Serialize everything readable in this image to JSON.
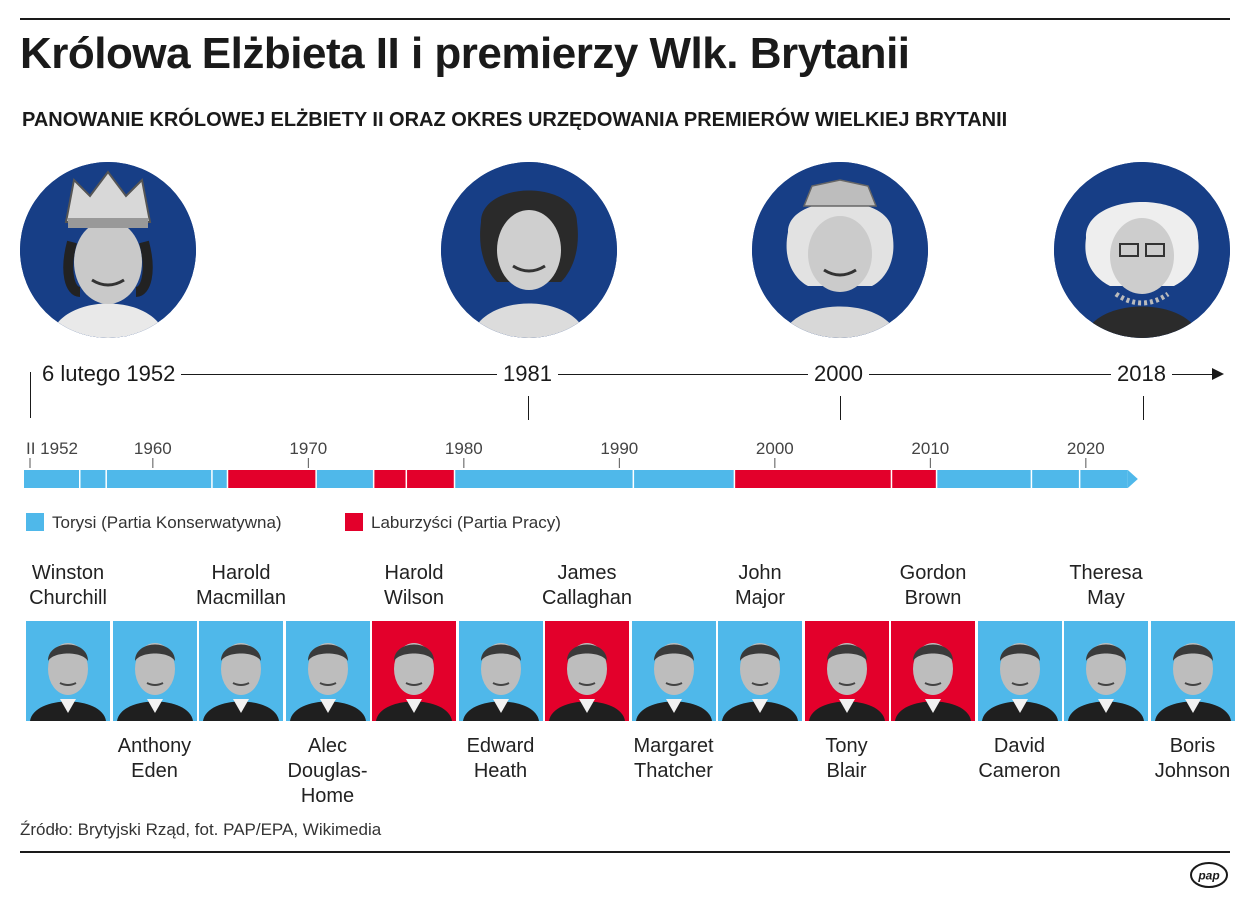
{
  "title": "Królowa Elżbieta II i premierzy Wlk. Brytanii",
  "subtitle": "PANOWANIE KRÓLOWEJ ELŻBIETY II ORAZ OKRES URZĘDOWANIA PREMIERÓW WIELKIEJ BRYTANII",
  "portraits": [
    {
      "year": "6 lutego 1952",
      "icon": "queen-portrait-1952"
    },
    {
      "year": "1981",
      "icon": "queen-portrait-1981"
    },
    {
      "year": "2000",
      "icon": "queen-portrait-2000"
    },
    {
      "year": "2018",
      "icon": "queen-portrait-2018"
    }
  ],
  "axis": {
    "start_label": "II 1952",
    "ticks": [
      "1960",
      "1970",
      "1980",
      "1990",
      "2000",
      "2010",
      "2020"
    ]
  },
  "colors": {
    "conservative": "#4fb8ea",
    "labour": "#e3002b",
    "portrait_bg": "#173e86"
  },
  "legend": [
    {
      "label": "Torysi (Partia Konserwatywna)",
      "party": "conservative"
    },
    {
      "label": "Laburzyści (Partia Pracy)",
      "party": "labour"
    }
  ],
  "terms": [
    {
      "party": "conservative",
      "from": 1952.1,
      "to": 1955.3
    },
    {
      "party": "conservative",
      "from": 1955.3,
      "to": 1957.0
    },
    {
      "party": "conservative",
      "from": 1957.0,
      "to": 1963.8
    },
    {
      "party": "conservative",
      "from": 1963.8,
      "to": 1964.8
    },
    {
      "party": "labour",
      "from": 1964.8,
      "to": 1970.5
    },
    {
      "party": "conservative",
      "from": 1970.5,
      "to": 1974.2
    },
    {
      "party": "labour",
      "from": 1974.2,
      "to": 1976.3
    },
    {
      "party": "labour",
      "from": 1976.3,
      "to": 1979.4
    },
    {
      "party": "conservative",
      "from": 1979.4,
      "to": 1990.9
    },
    {
      "party": "conservative",
      "from": 1990.9,
      "to": 1997.4
    },
    {
      "party": "labour",
      "from": 1997.4,
      "to": 2007.5
    },
    {
      "party": "labour",
      "from": 2007.5,
      "to": 2010.4
    },
    {
      "party": "conservative",
      "from": 2010.4,
      "to": 2016.5
    },
    {
      "party": "conservative",
      "from": 2016.5,
      "to": 2019.6
    },
    {
      "party": "conservative",
      "from": 2019.6,
      "to": 2022.7
    }
  ],
  "prime_ministers": [
    {
      "line1": "Winston",
      "line2": "Churchill",
      "party": "conservative",
      "label_pos": "top"
    },
    {
      "line1": "Anthony",
      "line2": "Eden",
      "party": "conservative",
      "label_pos": "bottom"
    },
    {
      "line1": "Harold",
      "line2": "Macmillan",
      "party": "conservative",
      "label_pos": "top"
    },
    {
      "line1": "Alec",
      "line2": "Douglas-Home",
      "party": "conservative",
      "label_pos": "bottom"
    },
    {
      "line1": "Harold",
      "line2": "Wilson",
      "party": "labour",
      "label_pos": "top"
    },
    {
      "line1": "Edward",
      "line2": "Heath",
      "party": "conservative",
      "label_pos": "bottom"
    },
    {
      "line1": "James",
      "line2": "Callaghan",
      "party": "labour",
      "label_pos": "top"
    },
    {
      "line1": "Margaret",
      "line2": "Thatcher",
      "party": "conservative",
      "label_pos": "bottom"
    },
    {
      "line1": "John",
      "line2": "Major",
      "party": "conservative",
      "label_pos": "top"
    },
    {
      "line1": "Tony",
      "line2": "Blair",
      "party": "labour",
      "label_pos": "bottom"
    },
    {
      "line1": "Gordon",
      "line2": "Brown",
      "party": "labour",
      "label_pos": "top"
    },
    {
      "line1": "David",
      "line2": "Cameron",
      "party": "conservative",
      "label_pos": "bottom"
    },
    {
      "line1": "Theresa",
      "line2": "May",
      "party": "conservative",
      "label_pos": "top"
    },
    {
      "line1": "Boris",
      "line2": "Johnson",
      "party": "conservative",
      "label_pos": "bottom"
    }
  ],
  "source": "Źródło: Brytyjski Rząd, fot. PAP/EPA, Wikimedia",
  "logo": "pap"
}
